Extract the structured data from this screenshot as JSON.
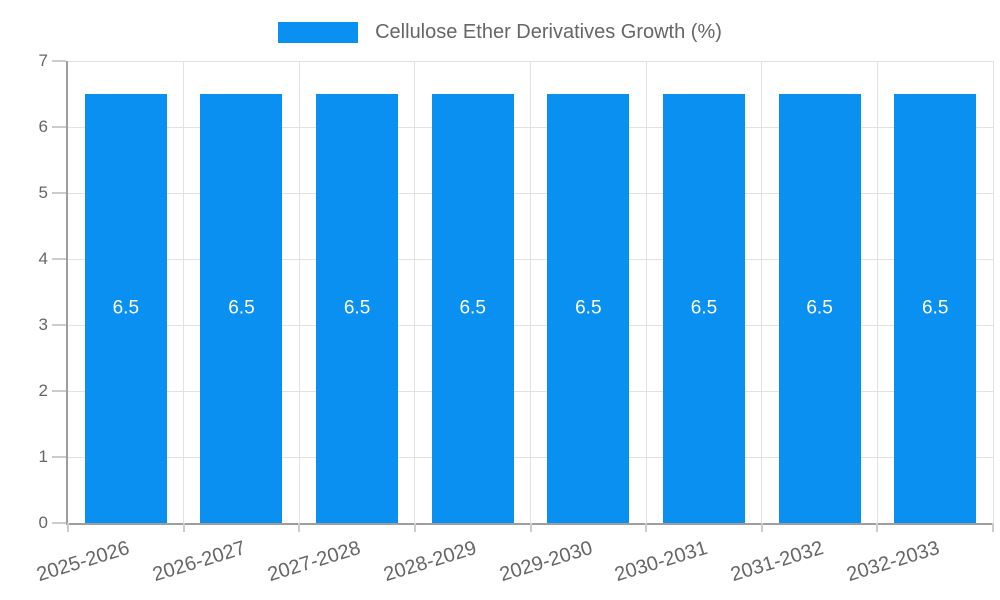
{
  "chart_data": {
    "type": "bar",
    "title": "Cellulose Ether Derivatives Growth (%)",
    "categories": [
      "2025-2026",
      "2026-2027",
      "2027-2028",
      "2028-2029",
      "2029-2030",
      "2030-2031",
      "2031-2032",
      "2032-2033"
    ],
    "values": [
      6.5,
      6.5,
      6.5,
      6.5,
      6.5,
      6.5,
      6.5,
      6.5
    ],
    "data_labels": [
      "6.5",
      "6.5",
      "6.5",
      "6.5",
      "6.5",
      "6.5",
      "6.5",
      "6.5"
    ],
    "xlabel": "",
    "ylabel": "",
    "ylim": [
      0,
      7
    ],
    "yticks": [
      0,
      1,
      2,
      3,
      4,
      5,
      6,
      7
    ],
    "grid": true,
    "legend_position": "top",
    "colors": {
      "bar": "#0a90f0",
      "text": "#666666",
      "grid": "#e2e2e2",
      "axis": "#9e9e9e",
      "tick": "#cccccc",
      "data_label": "#ffffff",
      "background": "#ffffff"
    }
  }
}
